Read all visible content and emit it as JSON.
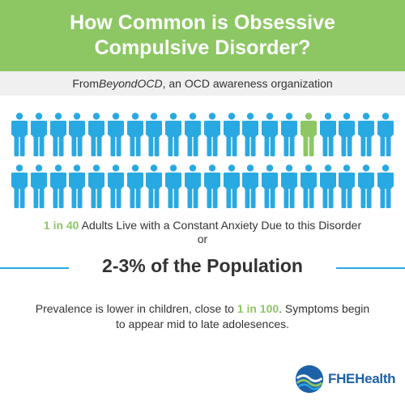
{
  "header": {
    "title_line1": "How Common is Obsessive",
    "title_line2": "Compulsive Disorder?"
  },
  "source": {
    "prefix": "From ",
    "org": "BeyondOCD",
    "suffix": ", an OCD awareness organization"
  },
  "pictogram": {
    "rows": 2,
    "per_row": 20,
    "total": 40,
    "highlighted_index": 15,
    "highlight_color": "#8dc764",
    "base_color": "#29a9e1"
  },
  "stat": {
    "highlight": "1 in 40",
    "text": " Adults Live with a Constant Anxiety Due to this Disorder",
    "or": "or"
  },
  "population": {
    "text": "2-3% of the Population"
  },
  "prevalence": {
    "part1": "Prevalence is lower in children, close to ",
    "highlight": "1 in 100",
    "part2": ". Symptoms begin to appear mid to late adolesences."
  },
  "logo": {
    "name_part1": "FHE",
    "name_part2": "Health",
    "icon": "wave-circle-icon"
  },
  "colors": {
    "green": "#8dc764",
    "blue": "#29a9e1",
    "text": "#333333"
  }
}
